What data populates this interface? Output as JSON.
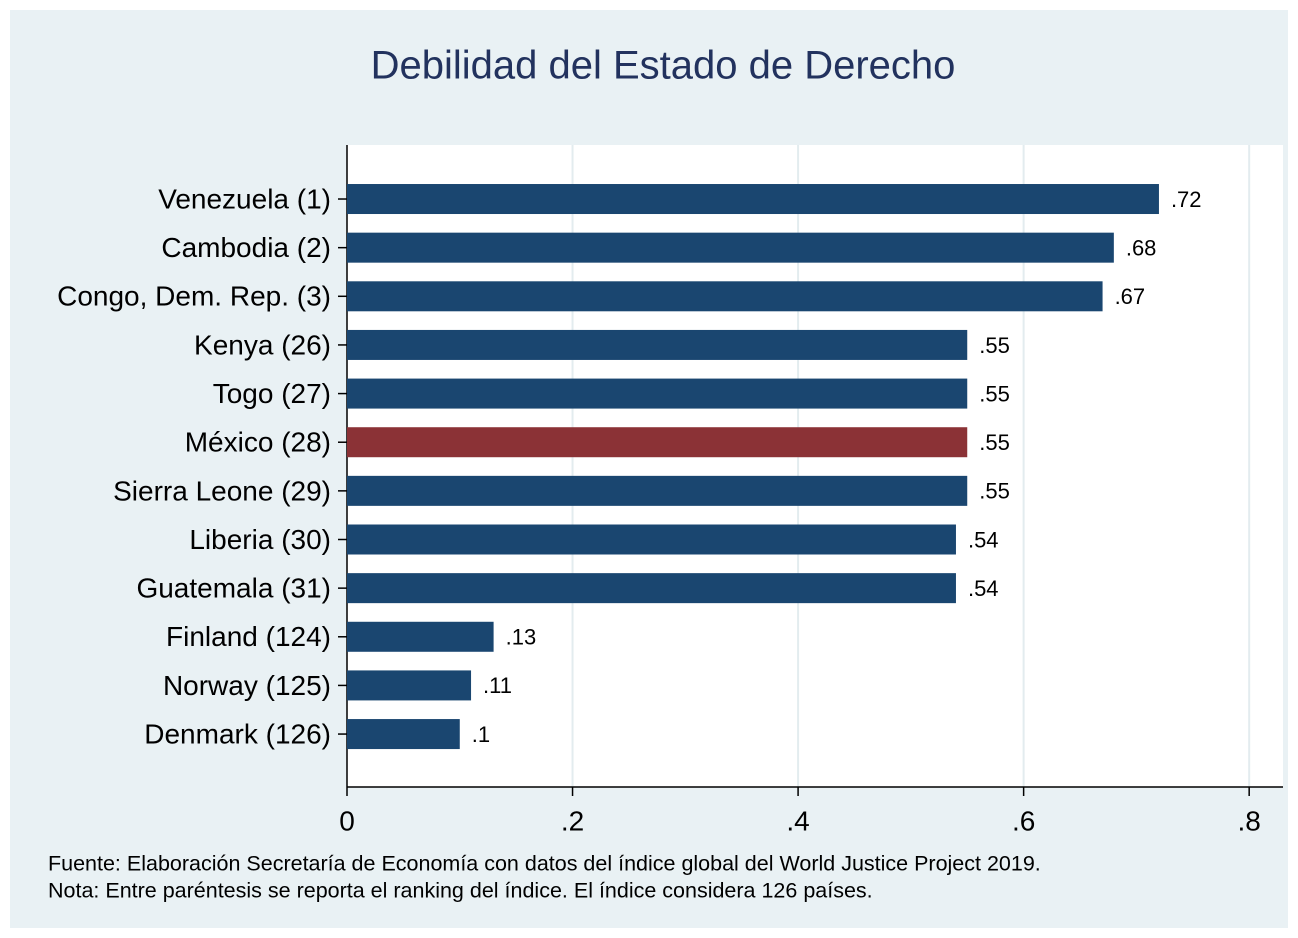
{
  "chart_data": {
    "type": "bar",
    "orientation": "horizontal",
    "title": "Debilidad del Estado de Derecho",
    "categories": [
      "Venezuela (1)",
      "Cambodia (2)",
      "Congo, Dem. Rep. (3)",
      "Kenya (26)",
      "Togo (27)",
      "México (28)",
      "Sierra Leone (29)",
      "Liberia (30)",
      "Guatemala (31)",
      "Finland (124)",
      "Norway (125)",
      "Denmark (126)"
    ],
    "values": [
      0.72,
      0.68,
      0.67,
      0.55,
      0.55,
      0.55,
      0.55,
      0.54,
      0.54,
      0.13,
      0.11,
      0.1
    ],
    "value_labels": [
      ".72",
      ".68",
      ".67",
      ".55",
      ".55",
      ".55",
      ".55",
      ".54",
      ".54",
      ".13",
      ".11",
      ".1"
    ],
    "colors": [
      "#1a4670",
      "#1a4670",
      "#1a4670",
      "#1a4670",
      "#1a4670",
      "#8b3236",
      "#1a4670",
      "#1a4670",
      "#1a4670",
      "#1a4670",
      "#1a4670",
      "#1a4670"
    ],
    "xlim": [
      0,
      0.83
    ],
    "xticks": [
      0,
      {
        "value": 0.2,
        "label": ".2"
      },
      {
        "value": 0.4,
        "label": ".4"
      },
      {
        "value": 0.6,
        "label": ".6"
      },
      {
        "value": 0.8,
        "label": ".8"
      }
    ],
    "grid": true,
    "notes": [
      "Fuente: Elaboración Secretaría de Economía con datos del índice global del World Justice Project 2019.",
      "Nota: Entre paréntesis se reporta el ranking del índice. El índice considera 126 países."
    ]
  }
}
